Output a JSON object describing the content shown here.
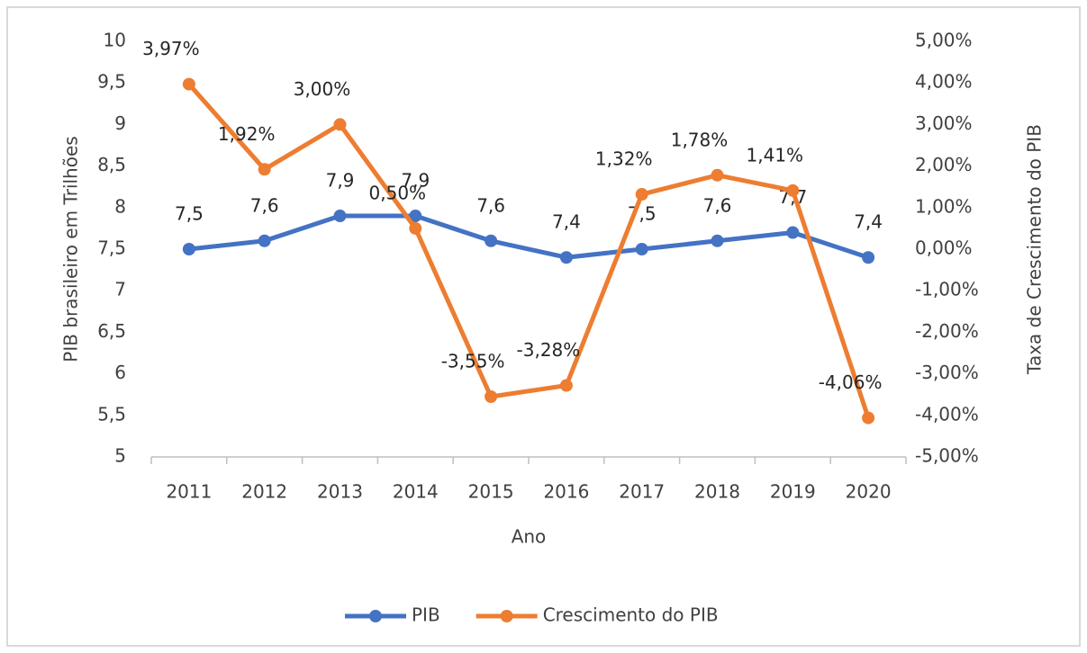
{
  "chart_data": {
    "type": "line",
    "categories": [
      "2011",
      "2012",
      "2013",
      "2014",
      "2015",
      "2016",
      "2017",
      "2018",
      "2019",
      "2020"
    ],
    "series": [
      {
        "name": "PIB",
        "color": "#4472c4",
        "values": [
          7.5,
          7.6,
          7.9,
          7.9,
          7.6,
          7.4,
          7.5,
          7.6,
          7.7,
          7.4
        ],
        "value_labels": [
          "7,5",
          "7,6",
          "7,9",
          "7,9",
          "7,6",
          "7,4",
          "7,5",
          "7,6",
          "7,7",
          "7,4"
        ]
      },
      {
        "name": "Crescimento do PIB",
        "color": "#ed7d31",
        "axis": "y2",
        "values": [
          3.97,
          1.92,
          3.0,
          0.5,
          -3.55,
          -3.28,
          1.32,
          1.78,
          1.41,
          -4.06
        ],
        "value_labels": [
          "3,97%",
          "1,92%",
          "3,00%",
          "0,50%",
          "-3,55%",
          "-3,28%",
          "1,32%",
          "1,78%",
          "1,41%",
          "-4,06%"
        ]
      }
    ],
    "xlabel": "Ano",
    "ylabel": "PIB brasileiro em Trilhões",
    "y2label": "Taxa de Crescimento do PIB",
    "ylim": [
      5,
      10
    ],
    "yticks": [
      5,
      {
        "value": 5.5,
        "label": "5,5"
      },
      6,
      {
        "value": 6.5,
        "label": "6,5"
      },
      7,
      {
        "value": 7.5,
        "label": "7,5"
      },
      8,
      {
        "value": 8.5,
        "label": "8,5"
      },
      9,
      {
        "value": 9.5,
        "label": "9,5"
      },
      10
    ],
    "y2lim": [
      -5,
      5
    ],
    "y2ticks": [
      {
        "value": -5,
        "label": "-5,00%"
      },
      {
        "value": -4,
        "label": "-4,00%"
      },
      {
        "value": -3,
        "label": "-3,00%"
      },
      {
        "value": -2,
        "label": "-2,00%"
      },
      {
        "value": -1,
        "label": "-1,00%"
      },
      {
        "value": 0,
        "label": "0,00%"
      },
      {
        "value": 1,
        "label": "1,00%"
      },
      {
        "value": 2,
        "label": "2,00%"
      },
      {
        "value": 3,
        "label": "3,00%"
      },
      {
        "value": 4,
        "label": "4,00%"
      },
      {
        "value": 5,
        "label": "5,00%"
      }
    ],
    "grid": false,
    "legend": "bottom"
  }
}
